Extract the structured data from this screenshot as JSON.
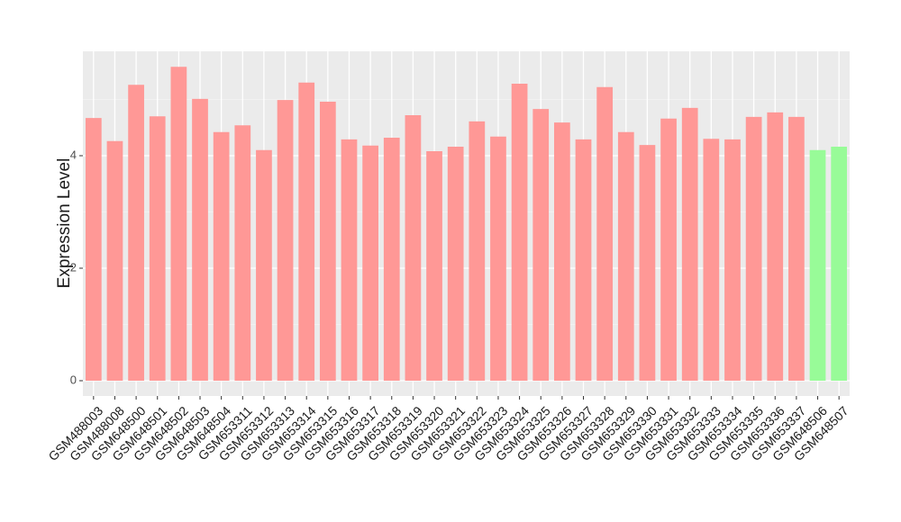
{
  "chart_data": {
    "type": "bar",
    "y_label": "Expression Level",
    "categories": [
      "GSM488003",
      "GSM488008",
      "GSM648500",
      "GSM648501",
      "GSM648502",
      "GSM648503",
      "GSM648504",
      "GSM653311",
      "GSM653312",
      "GSM653313",
      "GSM653314",
      "GSM653315",
      "GSM653316",
      "GSM653317",
      "GSM653318",
      "GSM653319",
      "GSM653320",
      "GSM653321",
      "GSM653322",
      "GSM653323",
      "GSM653324",
      "GSM653325",
      "GSM653326",
      "GSM653327",
      "GSM653328",
      "GSM653329",
      "GSM653330",
      "GSM653331",
      "GSM653332",
      "GSM653333",
      "GSM653334",
      "GSM653335",
      "GSM653336",
      "GSM653337",
      "GSM648506",
      "GSM648507"
    ],
    "values": [
      4.67,
      4.26,
      5.26,
      4.7,
      5.58,
      5.01,
      4.42,
      4.54,
      4.1,
      4.99,
      5.3,
      4.96,
      4.29,
      4.18,
      4.32,
      4.72,
      4.08,
      4.16,
      4.61,
      4.34,
      5.28,
      4.83,
      4.59,
      4.29,
      5.22,
      4.42,
      4.19,
      4.66,
      4.85,
      4.3,
      4.29,
      4.69,
      4.77,
      4.69,
      4.1,
      4.16
    ],
    "colors": [
      "#ff9896",
      "#ff9896",
      "#ff9896",
      "#ff9896",
      "#ff9896",
      "#ff9896",
      "#ff9896",
      "#ff9896",
      "#ff9896",
      "#ff9896",
      "#ff9896",
      "#ff9896",
      "#ff9896",
      "#ff9896",
      "#ff9896",
      "#ff9896",
      "#ff9896",
      "#ff9896",
      "#ff9896",
      "#ff9896",
      "#ff9896",
      "#ff9896",
      "#ff9896",
      "#ff9896",
      "#ff9896",
      "#ff9896",
      "#ff9896",
      "#ff9896",
      "#ff9896",
      "#ff9896",
      "#ff9896",
      "#ff9896",
      "#ff9896",
      "#ff9896",
      "#98fb98",
      "#98fb98"
    ],
    "ylim": [
      -0.272,
      5.856
    ],
    "yticks": [
      0,
      2,
      4
    ],
    "grid": true
  }
}
